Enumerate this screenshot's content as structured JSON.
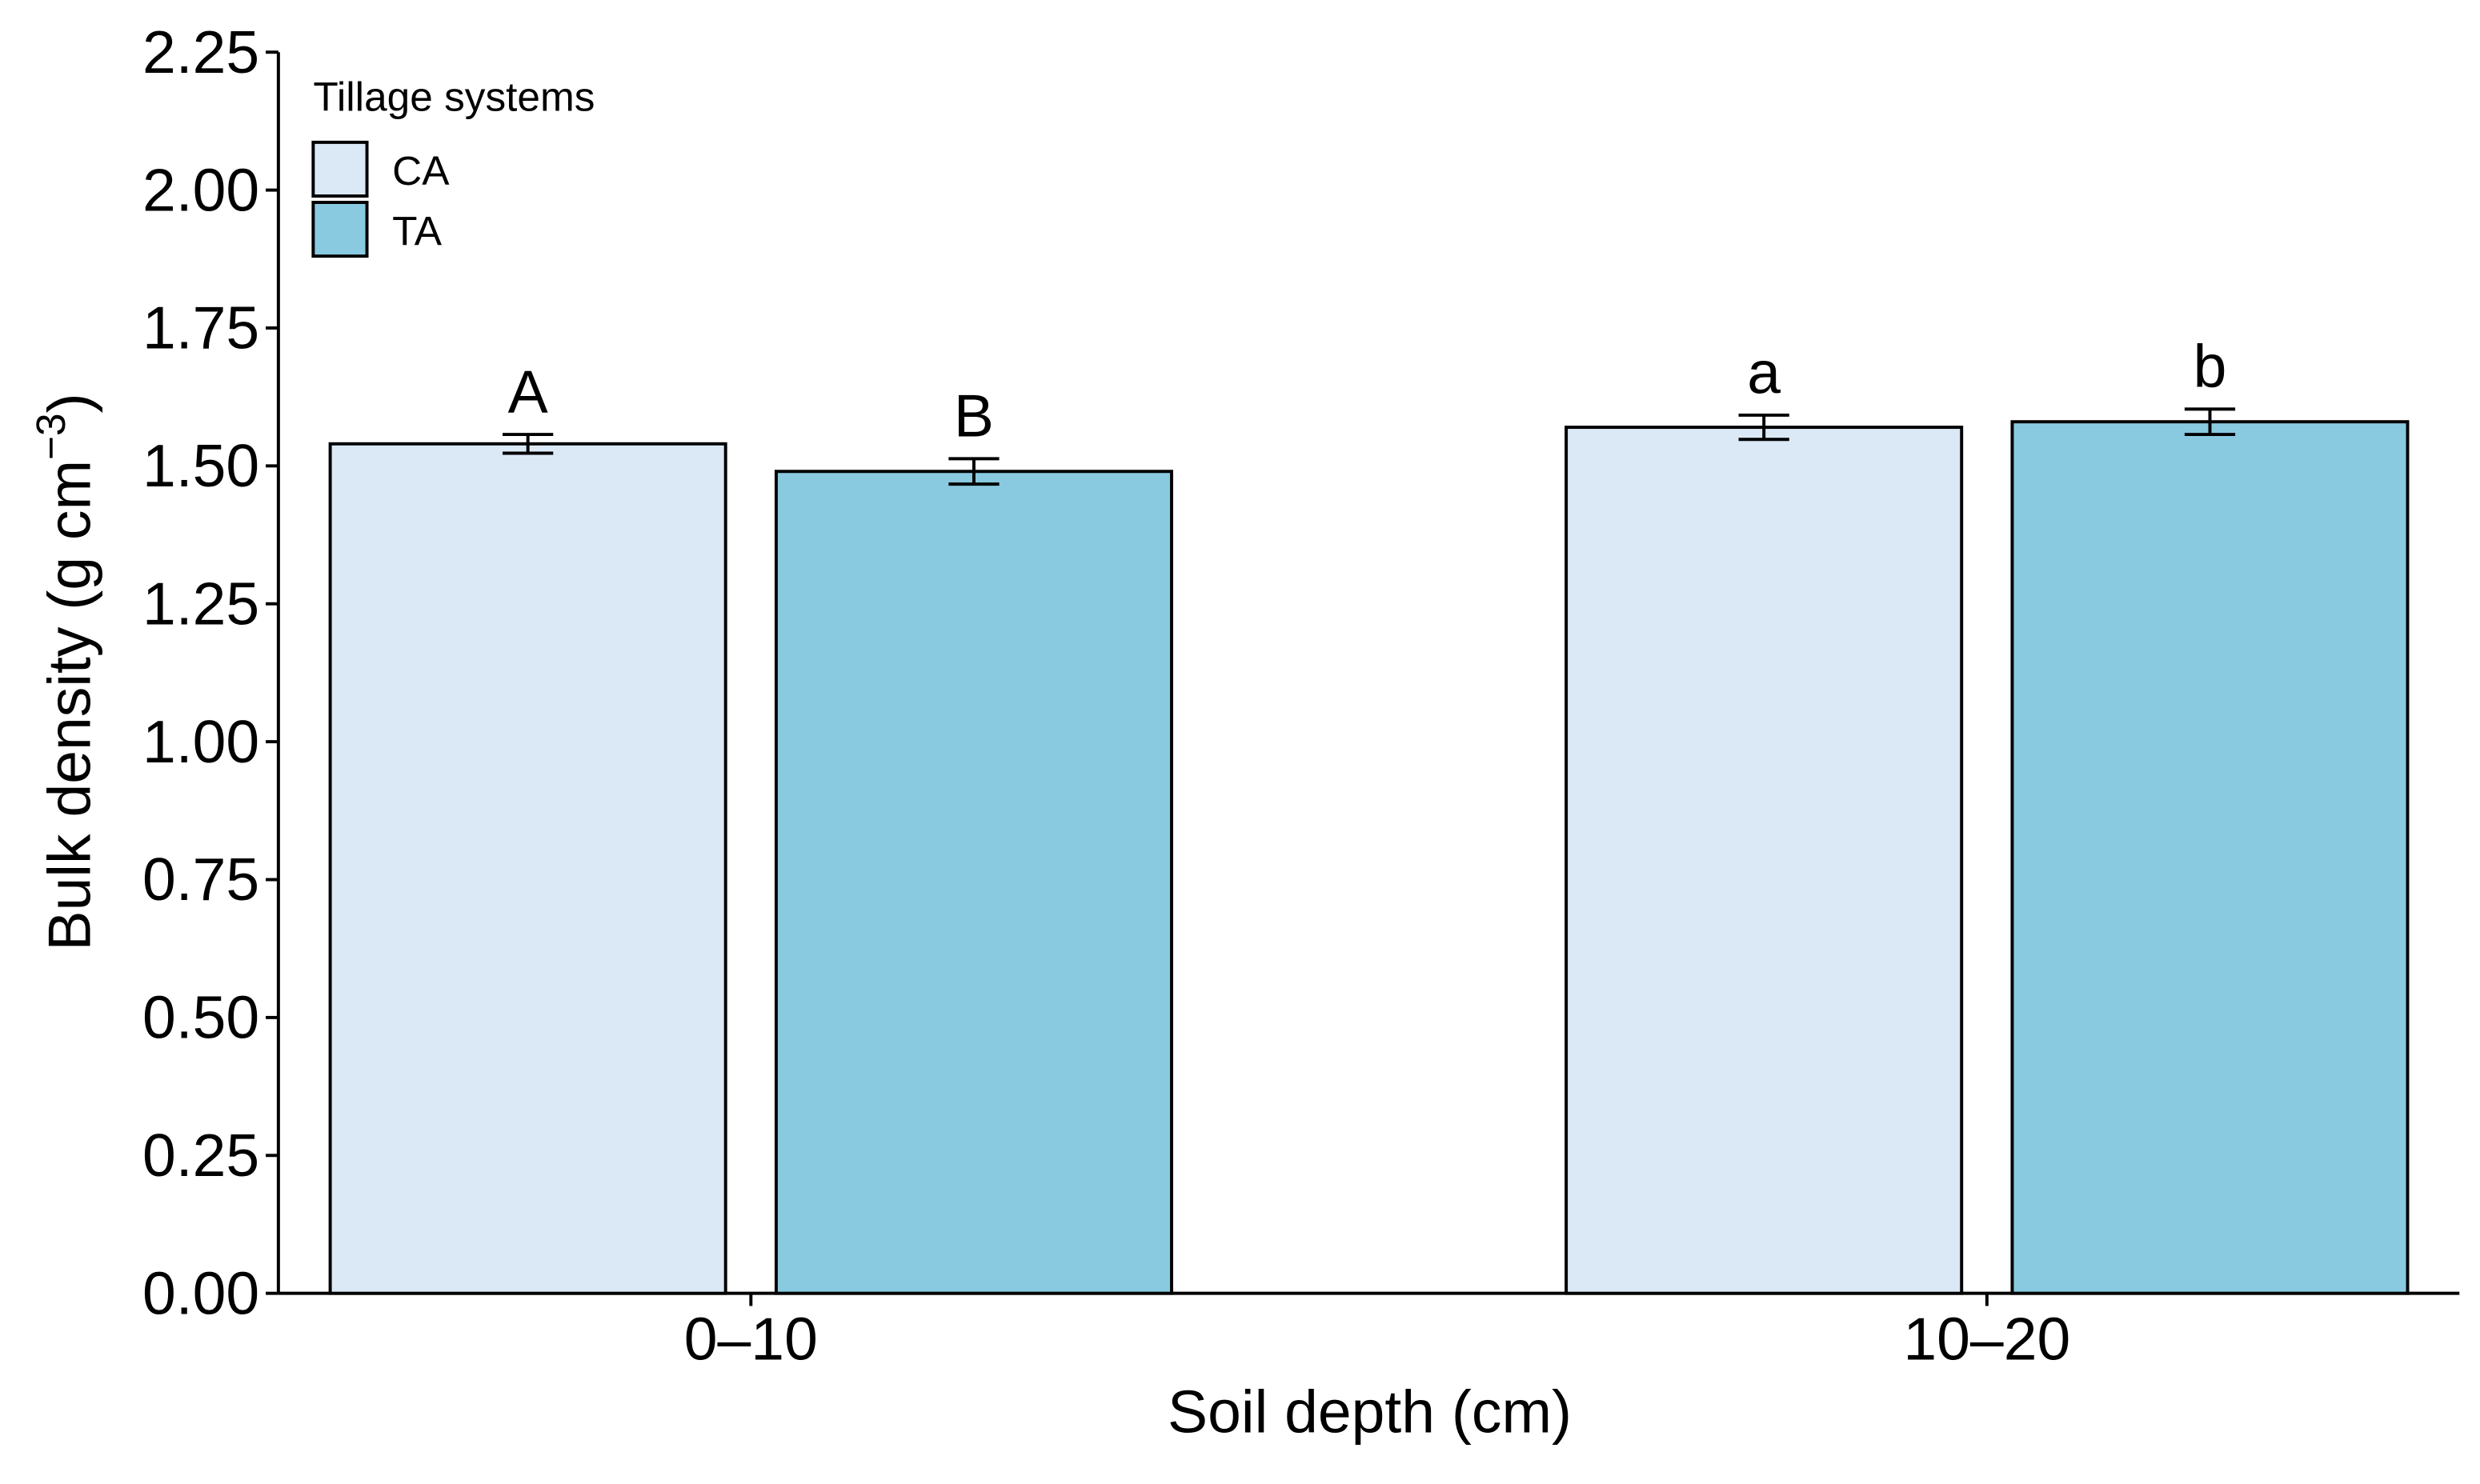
{
  "chart_data": {
    "type": "bar",
    "ylabel_parts": [
      "Bulk density (g cm",
      "−3",
      ")"
    ],
    "xlabel": "Soil depth (cm)",
    "legend_title": "Tillage systems",
    "legend_position": "top-left",
    "categories": [
      "0–10",
      "10–20"
    ],
    "series": [
      {
        "name": "CA",
        "color": "#dbe9f6",
        "values": [
          1.54,
          1.57
        ],
        "errors": [
          0.017,
          0.022
        ],
        "letters": [
          "A",
          "a"
        ]
      },
      {
        "name": "TA",
        "color": "#89cae1",
        "values": [
          1.49,
          1.58
        ],
        "errors": [
          0.023,
          0.023
        ],
        "letters": [
          "B",
          "b"
        ]
      }
    ],
    "ylim": [
      0,
      2.25
    ],
    "yticks": [
      {
        "value": 0,
        "label": "0.00"
      },
      0.25,
      {
        "value": 0.5,
        "label": "0.50"
      },
      0.75,
      {
        "value": 1,
        "label": "1.00"
      },
      1.25,
      {
        "value": 1.5,
        "label": "1.50"
      },
      1.75,
      {
        "value": 2,
        "label": "2.00"
      },
      2.25
    ],
    "grid": false
  }
}
